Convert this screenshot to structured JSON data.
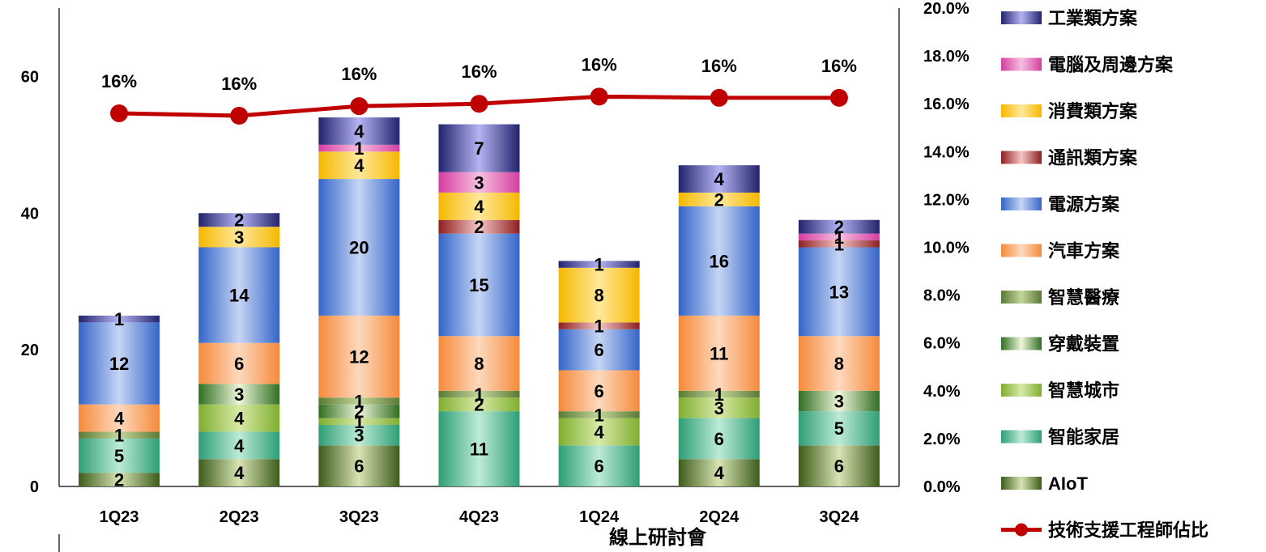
{
  "chart_data": {
    "type": "stacked-bar-with-line",
    "title": "",
    "xlabel": "線上研討會",
    "ylabel": "",
    "categories": [
      "1Q23",
      "2Q23",
      "3Q23",
      "4Q23",
      "1Q24",
      "2Q24",
      "3Q24"
    ],
    "left_axis": {
      "ylim": [
        0,
        70
      ],
      "ticks": [
        0,
        20,
        40,
        60
      ]
    },
    "right_axis": {
      "ylim": [
        0,
        20
      ],
      "ticks": [
        "0.0%",
        "2.0%",
        "4.0%",
        "6.0%",
        "8.0%",
        "10.0%",
        "12.0%",
        "14.0%",
        "16.0%",
        "18.0%",
        "20.0%"
      ]
    },
    "grid": false,
    "legend_position": "right",
    "series": [
      {
        "name": "AIoT",
        "values": [
          2,
          4,
          6,
          0,
          0,
          4,
          6
        ],
        "colors": [
          "#3d5c1a",
          "#d8e3b4"
        ]
      },
      {
        "name": "智能家居",
        "values": [
          5,
          4,
          3,
          11,
          6,
          6,
          5
        ],
        "colors": [
          "#2e9e75",
          "#bcebd6"
        ]
      },
      {
        "name": "智慧城市",
        "values": [
          0,
          4,
          1,
          2,
          4,
          3,
          0
        ],
        "colors": [
          "#7fae2e",
          "#d8eaa8"
        ]
      },
      {
        "name": "穿戴裝置",
        "values": [
          0,
          3,
          2,
          0,
          0,
          0,
          3
        ],
        "colors": [
          "#2f6e22",
          "#eef6d8"
        ]
      },
      {
        "name": "智慧醫療",
        "values": [
          1,
          0,
          1,
          1,
          1,
          1,
          0
        ],
        "colors": [
          "#5a7a34",
          "#c3d69b"
        ]
      },
      {
        "name": "汽車方案",
        "values": [
          4,
          6,
          12,
          8,
          6,
          11,
          8
        ],
        "colors": [
          "#f58a3a",
          "#fdd9bd"
        ]
      },
      {
        "name": "電源方案",
        "values": [
          12,
          14,
          20,
          15,
          6,
          16,
          13
        ],
        "colors": [
          "#3565c8",
          "#c6d5f4"
        ]
      },
      {
        "name": "通訊類方案",
        "values": [
          0,
          0,
          0,
          2,
          1,
          0,
          1
        ],
        "colors": [
          "#8e1f1f",
          "#f4c5c5"
        ]
      },
      {
        "name": "消費類方案",
        "values": [
          0,
          3,
          4,
          4,
          8,
          2,
          0
        ],
        "colors": [
          "#f5b800",
          "#ffe89a"
        ]
      },
      {
        "name": "電腦及周邊方案",
        "values": [
          0,
          0,
          1,
          3,
          0,
          0,
          1
        ],
        "colors": [
          "#d43ea0",
          "#f6bfe0"
        ]
      },
      {
        "name": "工業類方案",
        "values": [
          1,
          2,
          4,
          7,
          1,
          4,
          2
        ],
        "colors": [
          "#23236e",
          "#b4b4f2"
        ]
      }
    ],
    "line_series": {
      "name": "技術支援工程師佔比",
      "axis": "right",
      "values": [
        15.6,
        15.5,
        15.9,
        16.0,
        16.3,
        16.25,
        16.25
      ],
      "labels": [
        "16%",
        "16%",
        "16%",
        "16%",
        "16%",
        "16%",
        "16%"
      ],
      "color": "#c00000"
    }
  }
}
